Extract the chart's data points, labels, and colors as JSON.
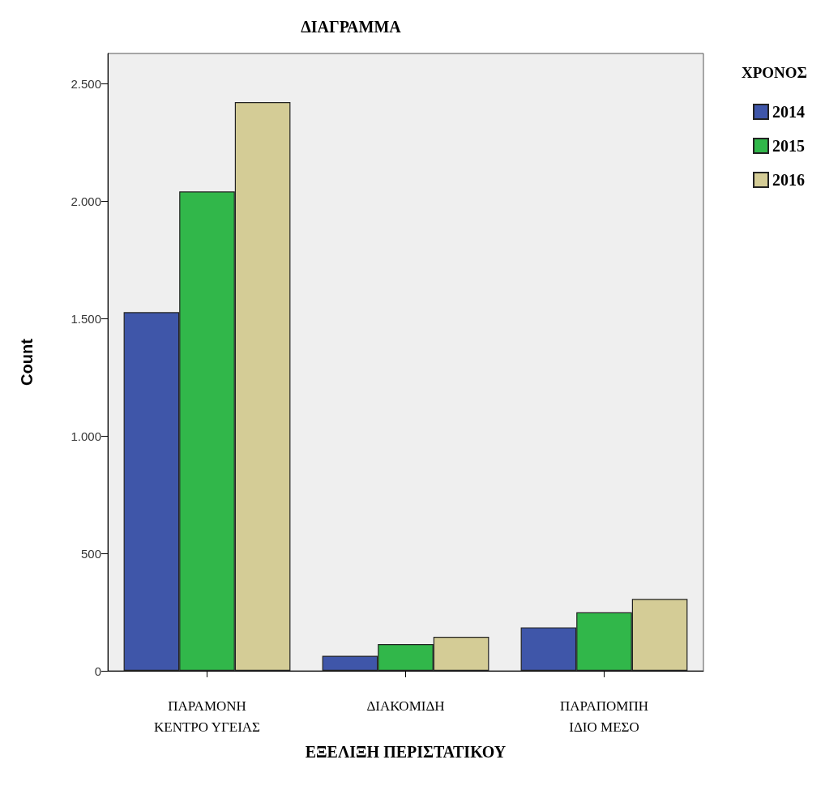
{
  "chart_data": {
    "type": "bar",
    "title": "ΔΙΑΓΡΑΜΜΑ",
    "xlabel": "ΕΞΕΛΙΞΗ ΠΕΡΙΣΤΑΤΙΚΟΥ",
    "ylabel": "Count",
    "legend_title": "ΧΡΟΝΟΣ",
    "legend": "top right",
    "categories": [
      "ΠΑΡΑΜΟΝΗ\nΚΕΝΤΡΟ ΥΓΕΙΑΣ",
      "ΔΙΑΚΟΜΙΔΗ",
      "ΠΑΡΑΠΟΜΠΗ\nΙΔΙΟ ΜΕΣΟ"
    ],
    "series": [
      {
        "name": "2014",
        "color": "#3f56a9",
        "values": [
          1528,
          64,
          185
        ]
      },
      {
        "name": "2015",
        "color": "#31b74a",
        "values": [
          2042,
          114,
          249
        ]
      },
      {
        "name": "2016",
        "color": "#d4cc96",
        "values": [
          2423,
          145,
          306
        ]
      }
    ],
    "ylim": [
      0,
      2630
    ],
    "yticks": [
      0,
      500,
      {
        "value": 1000,
        "label": "1.000"
      },
      {
        "value": 1500,
        "label": "1.500"
      },
      {
        "value": 2000,
        "label": "2.000"
      },
      {
        "value": 2500,
        "label": "2.500"
      }
    ],
    "grid": false
  }
}
